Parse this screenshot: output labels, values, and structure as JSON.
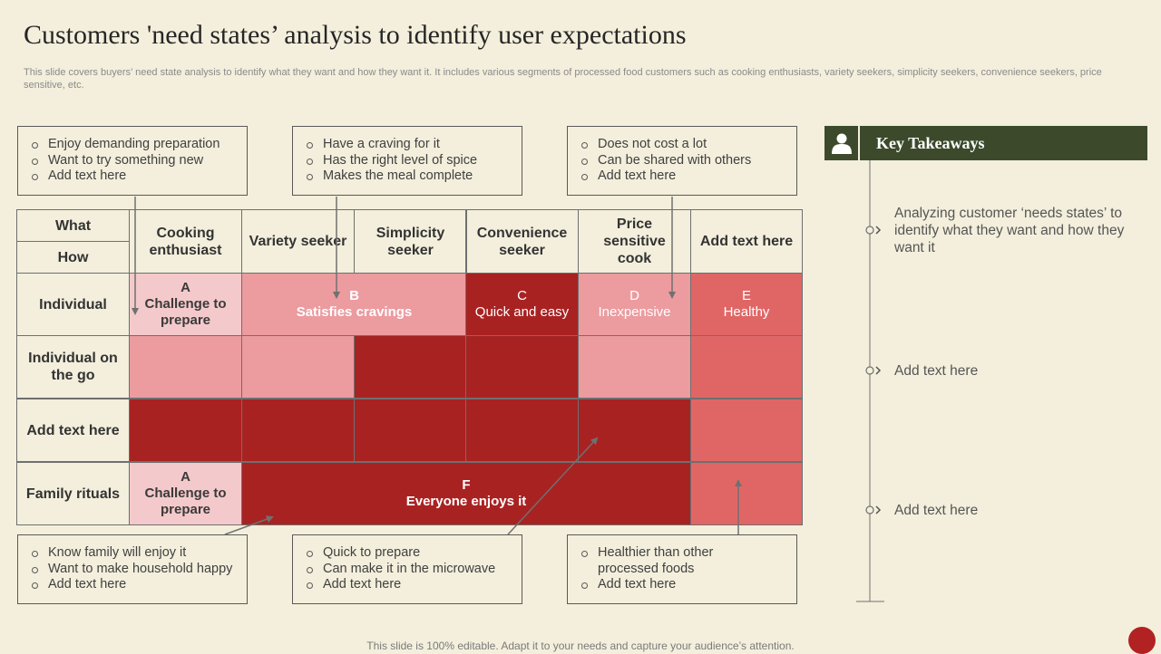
{
  "title": "Customers 'need states’ analysis to identify user expectations",
  "subtitle": "This slide covers buyers’ need state analysis to identify what they want and how they want it. It includes various segments of processed food customers such as cooking enthusiasts, variety seekers, simplicity seekers, convenience seekers, price sensitive, etc.",
  "notes_top": [
    [
      "Enjoy demanding preparation",
      "Want to try something new",
      "Add text here"
    ],
    [
      "Have a craving for it",
      "Has the right level of spice",
      "Makes the meal complete"
    ],
    [
      "Does not cost a lot",
      "Can be shared with others",
      "Add text here"
    ]
  ],
  "notes_bottom": [
    [
      "Know family will enjoy it",
      "Want to make household happy",
      "Add text here"
    ],
    [
      "Quick to prepare",
      "Can make it in the microwave",
      "Add text here"
    ],
    [
      "Healthier than other processed foods",
      "Add text here"
    ]
  ],
  "matrix": {
    "what_label": "What",
    "how_label": "How",
    "columns": [
      "Cooking enthusiast",
      "Variety seeker",
      "Simplicity seeker",
      "Convenience seeker",
      "Price sensitive cook",
      "Add text here"
    ],
    "rows": [
      "Individual",
      "Individual on the go",
      "Add text here",
      "Family rituals"
    ],
    "segments": {
      "a1": {
        "letter": "A",
        "text": "Challenge to prepare"
      },
      "b": {
        "letter": "B",
        "text": "Satisfies cravings"
      },
      "c": {
        "letter": "C",
        "text": "Quick and easy"
      },
      "d": {
        "letter": "D",
        "text": "Inexpensive"
      },
      "e": {
        "letter": "E",
        "text": "Healthy"
      },
      "a2": {
        "letter": "A",
        "text": "Challenge to prepare"
      },
      "f": {
        "letter": "F",
        "text": "Everyone enjoys it"
      }
    },
    "colors": {
      "light": "#f4c9cb",
      "mid": "#ec9b9f",
      "dark": "#a92222",
      "coral": "#e06666"
    }
  },
  "key_takeaways": {
    "title": "Key Takeaways",
    "icon": "user-icon",
    "items": [
      "Analyzing customer ‘needs states’ to identify what they want and how they want it",
      "Add text here",
      "Add text here"
    ],
    "header_color": "#3c4a2b"
  },
  "footer": "This slide is 100% editable. Adapt it to your needs and capture your audience’s attention."
}
